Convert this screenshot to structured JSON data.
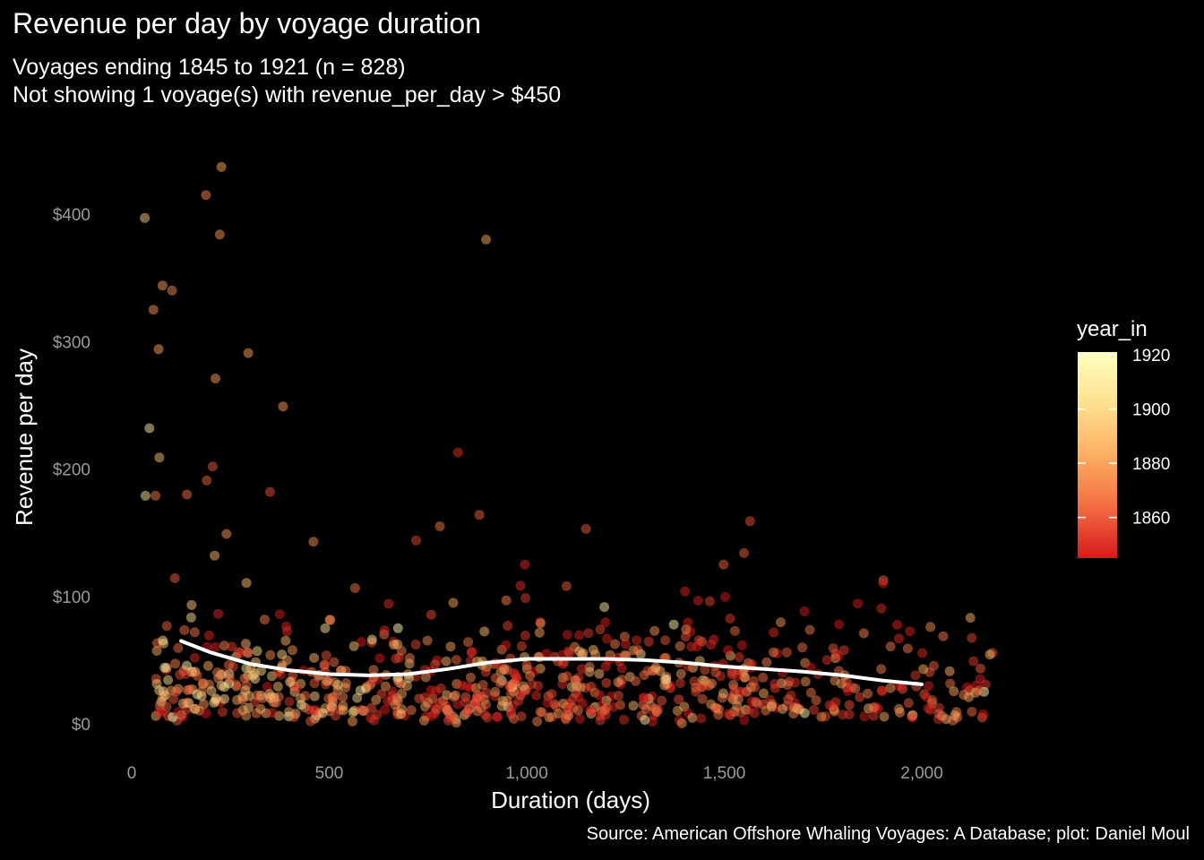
{
  "chart_data": {
    "type": "scatter",
    "title": "Revenue per day by voyage duration",
    "subtitle_lines": [
      "Voyages ending 1845 to 1921 (n = 828)",
      "Not showing 1 voyage(s) with revenue_per_day > $450"
    ],
    "caption": "Source: American Offshore Whaling Voyages: A Database; plot: Daniel Moul",
    "xlabel": "Duration (days)",
    "ylabel": "Revenue per day",
    "xlim": [
      -50,
      2230
    ],
    "ylim": [
      -30,
      445
    ],
    "x_ticks": [
      0,
      500,
      1000,
      1500,
      2000
    ],
    "x_tick_labels": [
      "0",
      "500",
      "1,000",
      "1,500",
      "2,000"
    ],
    "y_ticks": [
      0,
      100,
      200,
      300,
      400
    ],
    "y_tick_labels": [
      "$0",
      "$100",
      "$200",
      "$300",
      "$400"
    ],
    "grid": false,
    "legend": {
      "title": "year_in",
      "placement": "right",
      "range": [
        1845,
        1921
      ],
      "ticks": [
        1860,
        1880,
        1900,
        1920
      ],
      "tick_labels": [
        "1860",
        "1880",
        "1900",
        "1920"
      ],
      "colors": [
        "#d7191c",
        "#f46d43",
        "#fdae61",
        "#fee090",
        "#ffffbf"
      ]
    },
    "colors": {
      "background": "#000000",
      "smooth_line": "#ffffff"
    },
    "smooth": {
      "x": [
        125,
        200,
        300,
        400,
        500,
        600,
        700,
        800,
        900,
        1000,
        1100,
        1200,
        1300,
        1400,
        1500,
        1600,
        1700,
        1800,
        1900,
        2000
      ],
      "y": [
        65,
        56,
        47,
        42,
        39,
        38,
        39,
        43,
        48,
        51,
        51,
        51,
        50,
        48,
        45,
        43,
        41,
        38,
        34,
        31
      ]
    },
    "outliers": [
      {
        "x": 33,
        "y": 397,
        "year": 1895
      },
      {
        "x": 45,
        "y": 232,
        "year": 1912
      },
      {
        "x": 35,
        "y": 179,
        "year": 1905
      },
      {
        "x": 55,
        "y": 325,
        "year": 1875
      },
      {
        "x": 68,
        "y": 294,
        "year": 1880
      },
      {
        "x": 78,
        "y": 344,
        "year": 1878
      },
      {
        "x": 102,
        "y": 340,
        "year": 1872
      },
      {
        "x": 70,
        "y": 209,
        "year": 1890
      },
      {
        "x": 60,
        "y": 179,
        "year": 1868
      },
      {
        "x": 188,
        "y": 415,
        "year": 1870
      },
      {
        "x": 227,
        "y": 437,
        "year": 1882
      },
      {
        "x": 223,
        "y": 384,
        "year": 1876
      },
      {
        "x": 212,
        "y": 271,
        "year": 1879
      },
      {
        "x": 295,
        "y": 291,
        "year": 1878
      },
      {
        "x": 383,
        "y": 249,
        "year": 1877
      },
      {
        "x": 897,
        "y": 380,
        "year": 1881
      },
      {
        "x": 826,
        "y": 213,
        "year": 1850
      },
      {
        "x": 205,
        "y": 202,
        "year": 1860
      },
      {
        "x": 190,
        "y": 191,
        "year": 1862
      },
      {
        "x": 350,
        "y": 182,
        "year": 1858
      },
      {
        "x": 140,
        "y": 180,
        "year": 1865
      },
      {
        "x": 880,
        "y": 164,
        "year": 1862
      },
      {
        "x": 1565,
        "y": 159,
        "year": 1858
      },
      {
        "x": 1150,
        "y": 153,
        "year": 1860
      },
      {
        "x": 780,
        "y": 155,
        "year": 1868
      },
      {
        "x": 460,
        "y": 143,
        "year": 1874
      },
      {
        "x": 720,
        "y": 144,
        "year": 1856
      },
      {
        "x": 1550,
        "y": 134,
        "year": 1862
      },
      {
        "x": 240,
        "y": 149,
        "year": 1877
      },
      {
        "x": 210,
        "y": 132,
        "year": 1888
      }
    ],
    "cloud": {
      "n": 798,
      "x_range": [
        60,
        2180
      ],
      "typical_y": [
        0,
        120
      ],
      "year_range": [
        1845,
        1921
      ]
    }
  }
}
